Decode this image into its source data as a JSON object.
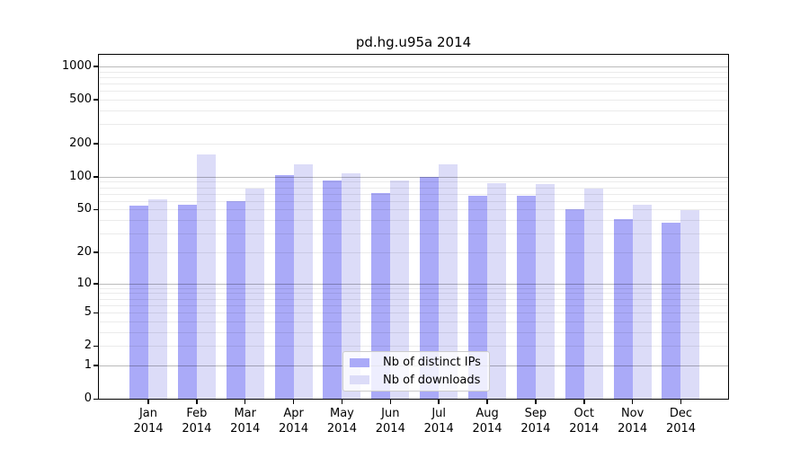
{
  "chart_data": {
    "type": "bar",
    "title": "pd.hg.u95a 2014",
    "categories": [
      "Jan 2014",
      "Feb 2014",
      "Mar 2014",
      "Apr 2014",
      "May 2014",
      "Jun 2014",
      "Jul 2014",
      "Aug 2014",
      "Sep 2014",
      "Oct 2014",
      "Nov 2014",
      "Dec 2014"
    ],
    "series": [
      {
        "name": "Nb of distinct IPs",
        "color": "#aaaaf8",
        "values": [
          54,
          55,
          60,
          104,
          92,
          71,
          100,
          67,
          67,
          50,
          41,
          38
        ]
      },
      {
        "name": "Nb of downloads",
        "color": "#dcdcf8",
        "values": [
          62,
          160,
          78,
          129,
          108,
          93,
          130,
          88,
          86,
          78,
          55,
          49
        ]
      }
    ],
    "y_ticks": [
      0,
      1,
      2,
      5,
      10,
      20,
      50,
      100,
      200,
      500,
      1000
    ],
    "y_scale": "log10(1+value)",
    "ylim": [
      0,
      1274
    ],
    "xlabel": "",
    "ylabel": "",
    "grid": "on, minor log gridlines at 2-9 per decade",
    "legend_position": "inside bottom-center",
    "colors": {
      "axis": "#000000",
      "major_grid": "#bbbbbb",
      "minor_grid": "#ececec",
      "legend_border": "#cccccc",
      "background": "#ffffff"
    }
  }
}
